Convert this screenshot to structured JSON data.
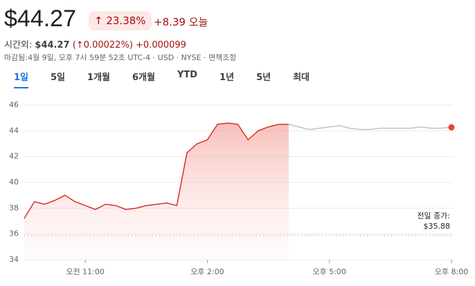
{
  "header": {
    "price": "$44.27",
    "change_pct": "23.38%",
    "change_abs": "+8.39",
    "period": "오늘",
    "after_hours_label": "시간외:",
    "after_hours_price": "$44.27",
    "after_hours_pct": "0.00022%",
    "after_hours_abs": "+0.000099",
    "status": [
      "마감됨:4월 9일, 오후 7시 59분 52초 UTC-4",
      "USD",
      "NYSE",
      "면책조항"
    ]
  },
  "tabs": [
    "1일",
    "5일",
    "1개월",
    "6개월",
    "YTD",
    "1년",
    "5년",
    "최대"
  ],
  "chart_data": {
    "type": "line",
    "x": [
      9.5,
      9.75,
      10,
      10.25,
      10.5,
      10.75,
      11,
      11.25,
      11.5,
      11.75,
      12,
      12.25,
      12.5,
      12.75,
      13,
      13.25,
      13.5,
      13.75,
      14,
      14.25,
      14.5,
      14.75,
      15,
      15.25,
      15.5,
      15.75,
      16,
      16.25,
      16.5,
      16.75,
      17,
      17.25,
      17.5,
      17.75,
      18,
      18.25,
      18.5,
      18.75,
      19,
      19.25,
      19.5,
      19.75,
      20
    ],
    "series": [
      {
        "color": "#d93025",
        "values": [
          37.2,
          38.5,
          38.3,
          38.6,
          39.0,
          38.5,
          38.2,
          37.9,
          38.3,
          38.2,
          37.9,
          38.0,
          38.2,
          38.3,
          38.4,
          38.2,
          42.3,
          43.0,
          43.3,
          44.5,
          44.6,
          44.5,
          43.3,
          44.0,
          44.3,
          44.5,
          44.5,
          null,
          null,
          null,
          null,
          null,
          null,
          null,
          null,
          null,
          null,
          null,
          null,
          null,
          null,
          null,
          null
        ]
      },
      {
        "color": "#bdc1c6",
        "values": [
          null,
          null,
          null,
          null,
          null,
          null,
          null,
          null,
          null,
          null,
          null,
          null,
          null,
          null,
          null,
          null,
          null,
          null,
          null,
          null,
          null,
          null,
          null,
          null,
          null,
          null,
          44.5,
          44.3,
          44.1,
          44.2,
          44.3,
          44.4,
          44.2,
          44.1,
          44.1,
          44.2,
          44.2,
          44.2,
          44.2,
          44.3,
          44.2,
          44.2,
          44.27
        ]
      }
    ],
    "end_marker_color": "#ea4335",
    "xlim": [
      9.5,
      20
    ],
    "xticks": [
      {
        "value": 11,
        "label": "오전 11:00"
      },
      {
        "value": 14,
        "label": "오후 2:00"
      },
      {
        "value": 17,
        "label": "오후 5:00"
      },
      {
        "value": 20,
        "label": "오후 8:00"
      }
    ],
    "ylim": [
      34,
      46
    ],
    "yticks": [
      34,
      36,
      38,
      40,
      42,
      44,
      46
    ],
    "grid": true,
    "previous_close": 35.88,
    "previous_close_label": "전일 종가:",
    "previous_close_value_label": "$35.88"
  }
}
